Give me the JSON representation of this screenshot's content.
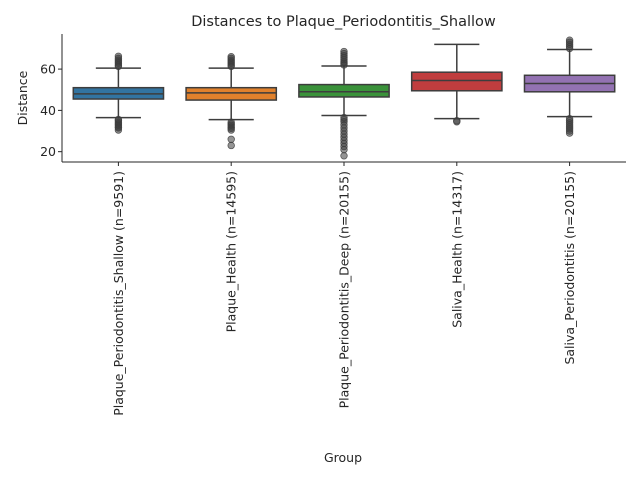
{
  "chart_data": {
    "type": "box",
    "title": "Distances to Plaque_Periodontitis_Shallow",
    "xlabel": "Group",
    "ylabel": "Distance",
    "ylim": [
      15,
      77
    ],
    "yticks": [
      20,
      40,
      60
    ],
    "grid": false,
    "legend": "none",
    "categories": [
      "Plaque_Periodontitis_Shallow (n=9591)",
      "Plaque_Health (n=14595)",
      "Plaque_Periodontitis_Deep (n=20155)",
      "Saliva_Health (n=14317)",
      "Saliva_Periodontitis (n=20155)"
    ],
    "boxes": [
      {
        "color": "#3274a1",
        "whisker_low": 36.5,
        "q1": 45.5,
        "median": 48.0,
        "q3": 51.0,
        "whisker_high": 60.5,
        "outliers": [
          30.5,
          31.5,
          32.0,
          32.8,
          33.5,
          34.2,
          35.0,
          35.6,
          61.3,
          62.0,
          62.8,
          63.5,
          64.3,
          65.2,
          66.2
        ]
      },
      {
        "color": "#e1812c",
        "whisker_low": 35.5,
        "q1": 45.0,
        "median": 48.5,
        "q3": 51.0,
        "whisker_high": 60.5,
        "outliers": [
          23.0,
          26.0,
          30.5,
          31.3,
          32.0,
          32.8,
          33.5,
          34.3,
          61.3,
          62.0,
          62.8,
          63.5,
          64.3,
          65.2,
          66.0
        ]
      },
      {
        "color": "#3a923a",
        "whisker_low": 37.5,
        "q1": 46.5,
        "median": 49.0,
        "q3": 52.5,
        "whisker_high": 61.5,
        "outliers": [
          18.0,
          21.0,
          22.5,
          24.0,
          25.5,
          27.0,
          28.5,
          30.0,
          31.5,
          33.0,
          34.5,
          35.5,
          36.5,
          62.0,
          62.8,
          63.5,
          64.5,
          65.5,
          66.5,
          67.5,
          68.5
        ]
      },
      {
        "color": "#c03d3e",
        "whisker_low": 36.0,
        "q1": 49.5,
        "median": 54.5,
        "q3": 58.5,
        "whisker_high": 72.0,
        "outliers": [
          34.5,
          35.0
        ]
      },
      {
        "color": "#9372b2",
        "whisker_low": 37.0,
        "q1": 49.0,
        "median": 53.0,
        "q3": 57.0,
        "whisker_high": 69.5,
        "outliers": [
          29.0,
          30.0,
          31.0,
          32.0,
          33.0,
          34.0,
          35.0,
          36.0,
          70.0,
          71.0,
          72.0,
          73.0,
          74.0
        ]
      }
    ]
  }
}
